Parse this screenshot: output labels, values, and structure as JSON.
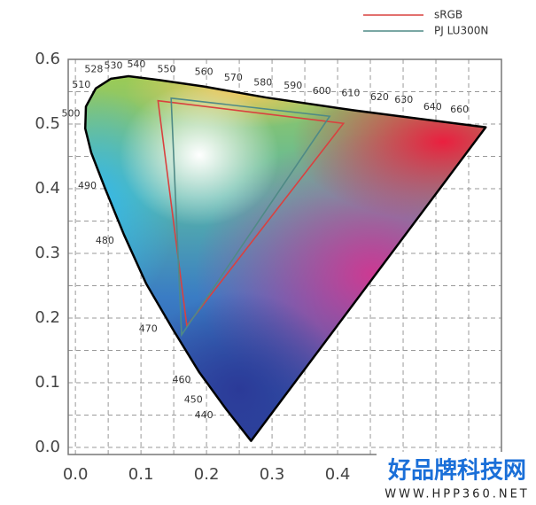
{
  "chart_data": {
    "type": "chromaticity",
    "xlim": [
      -0.011,
      0.65
    ],
    "ylim": [
      -0.011,
      0.6
    ],
    "xticks": [
      {
        "value": 0,
        "label": "0.0"
      },
      0.1,
      0.2,
      0.3,
      0.4
    ],
    "yticks": [
      {
        "value": 0,
        "label": "0.0"
      },
      0.1,
      0.2,
      0.3,
      0.4,
      0.5,
      0.6
    ],
    "xgrid": [
      0,
      0.05,
      0.1,
      0.15,
      0.2,
      0.25,
      0.3,
      0.35,
      0.4,
      0.45,
      0.5,
      0.55,
      0.6
    ],
    "ygrid": [
      0,
      0.05,
      0.1,
      0.15,
      0.2,
      0.25,
      0.3,
      0.35,
      0.4,
      0.45,
      0.5,
      0.55,
      0.6
    ],
    "legend": "top-right",
    "locus": {
      "color": "#000000",
      "x": [
        0.268,
        0.23,
        0.189,
        0.149,
        0.108,
        0.074,
        0.045,
        0.024,
        0.015,
        0.016,
        0.031,
        0.054,
        0.081,
        0.128,
        0.196,
        0.291,
        0.426,
        0.626
      ],
      "y": [
        0.01,
        0.059,
        0.116,
        0.182,
        0.253,
        0.329,
        0.401,
        0.456,
        0.493,
        0.527,
        0.555,
        0.57,
        0.574,
        0.568,
        0.558,
        0.541,
        0.521,
        0.495
      ]
    },
    "wavelength_labels": [
      {
        "text": "440",
        "x": 0.196,
        "y": 0.049
      },
      {
        "text": "450",
        "x": 0.18,
        "y": 0.073
      },
      {
        "text": "460",
        "x": 0.162,
        "y": 0.104
      },
      {
        "text": "470",
        "x": 0.111,
        "y": 0.183
      },
      {
        "text": "480",
        "x": 0.045,
        "y": 0.319
      },
      {
        "text": "490",
        "x": 0.018,
        "y": 0.404
      },
      {
        "text": "500",
        "x": -0.007,
        "y": 0.516
      },
      {
        "text": "510",
        "x": 0.009,
        "y": 0.56
      },
      {
        "text": "528",
        "x": 0.028,
        "y": 0.584
      },
      {
        "text": "530",
        "x": 0.058,
        "y": 0.59
      },
      {
        "text": "540",
        "x": 0.093,
        "y": 0.592
      },
      {
        "text": "550",
        "x": 0.139,
        "y": 0.584
      },
      {
        "text": "560",
        "x": 0.196,
        "y": 0.58
      },
      {
        "text": "570",
        "x": 0.241,
        "y": 0.571
      },
      {
        "text": "580",
        "x": 0.286,
        "y": 0.564
      },
      {
        "text": "590",
        "x": 0.332,
        "y": 0.559
      },
      {
        "text": "600",
        "x": 0.376,
        "y": 0.551
      },
      {
        "text": "610",
        "x": 0.42,
        "y": 0.547
      },
      {
        "text": "620",
        "x": 0.464,
        "y": 0.541
      },
      {
        "text": "630",
        "x": 0.501,
        "y": 0.537
      },
      {
        "text": "640",
        "x": 0.545,
        "y": 0.526
      },
      {
        "text": "660",
        "x": 0.586,
        "y": 0.522
      }
    ],
    "series": [
      {
        "name": "sRGB",
        "color": "#d9413f",
        "x": [
          0.409,
          0.126,
          0.17
        ],
        "y": [
          0.501,
          0.536,
          0.188
        ]
      },
      {
        "name": "PJ LU300N",
        "color": "#4f8a86",
        "x": [
          0.388,
          0.146,
          0.162
        ],
        "y": [
          0.512,
          0.54,
          0.174
        ]
      }
    ],
    "watermark": {
      "title": "好品牌科技网",
      "url": "WWW.HPP360.NET"
    }
  }
}
